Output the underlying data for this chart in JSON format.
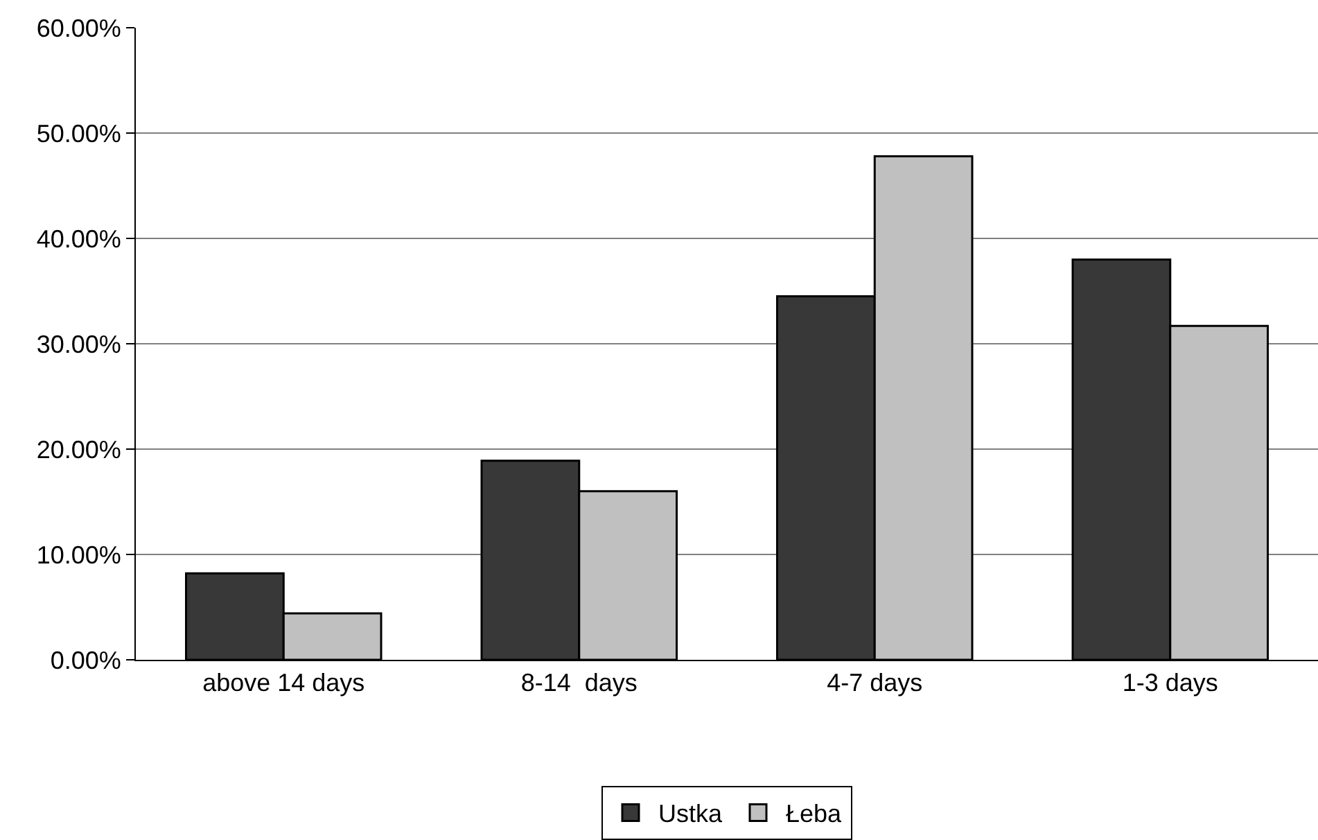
{
  "chart_data": {
    "type": "bar",
    "categories": [
      "above 14 days",
      "8-14  days",
      "4-7 days",
      "1-3 days"
    ],
    "series": [
      {
        "name": "Ustka",
        "color": "#383838",
        "values": [
          8.2,
          18.9,
          34.5,
          38.0
        ]
      },
      {
        "name": "Łeba",
        "color": "#c0c0c0",
        "values": [
          4.4,
          16.0,
          47.8,
          31.7
        ]
      }
    ],
    "ylim": [
      0,
      60
    ],
    "yticks": [
      {
        "value": 0,
        "label": "0.00%"
      },
      {
        "value": 10,
        "label": "10.00%"
      },
      {
        "value": 20,
        "label": "20.00%"
      },
      {
        "value": 30,
        "label": "30.00%"
      },
      {
        "value": 40,
        "label": "40.00%"
      },
      {
        "value": 50,
        "label": "50.00%"
      },
      {
        "value": 60,
        "label": "60.00%"
      }
    ],
    "grid": "y",
    "legend": "bottom"
  }
}
